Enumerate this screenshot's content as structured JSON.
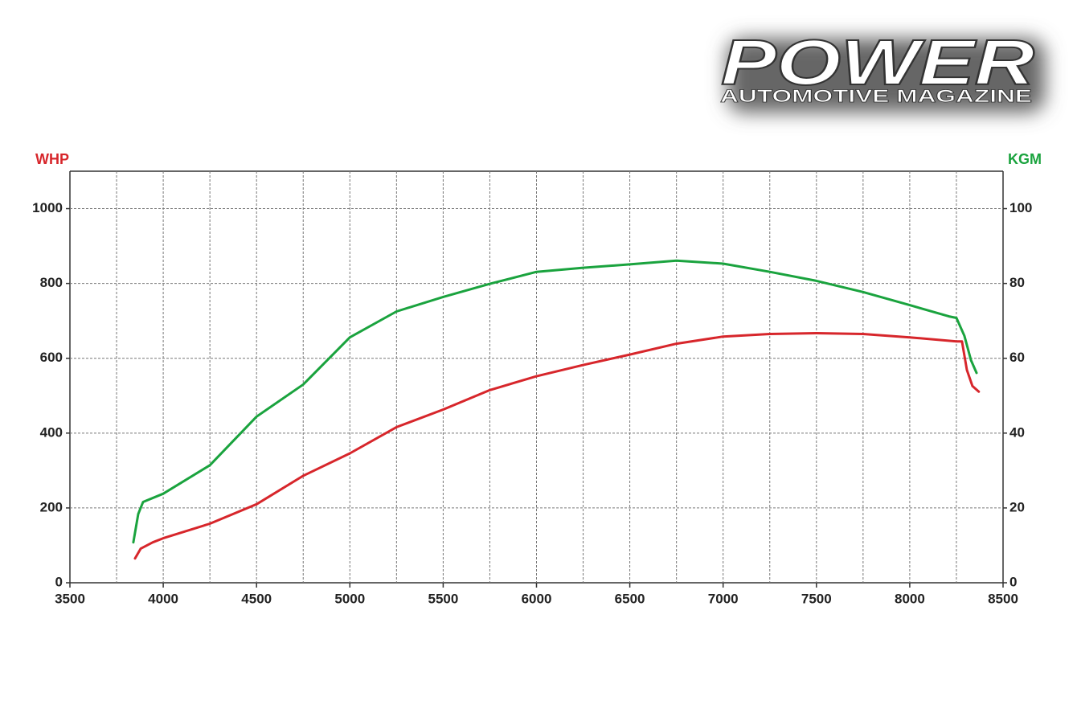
{
  "logo": {
    "title": "POWER",
    "subtitle": "AUTOMOTIVE MAGAZINE"
  },
  "chart_data": {
    "type": "line",
    "y_label": "WHP",
    "y2_label": "KGM",
    "xlim": [
      3500,
      8500
    ],
    "xticks": [
      3500,
      4000,
      4500,
      5000,
      5500,
      6000,
      6500,
      7000,
      7500,
      8000,
      8500
    ],
    "ylim": [
      0,
      1100
    ],
    "yticks": [
      0,
      200,
      400,
      600,
      800,
      1000
    ],
    "y2lim": [
      0,
      110
    ],
    "y2ticks": [
      0,
      20,
      40,
      60,
      80,
      100
    ],
    "grid": true,
    "series": [
      {
        "name": "WHP",
        "color": "#d7262b",
        "x": [
          3849,
          3879,
          3944,
          4000,
          4250,
          4500,
          4750,
          5000,
          5250,
          5500,
          5750,
          6000,
          6250,
          6500,
          6750,
          7000,
          7250,
          7500,
          7750,
          8000,
          8250,
          8280,
          8306,
          8336,
          8370
        ],
        "values": [
          65,
          91,
          108,
          119,
          158,
          210,
          286,
          346,
          416,
          463,
          515,
          552,
          582,
          610,
          639,
          658,
          665,
          667,
          665,
          656,
          645,
          645,
          569,
          526,
          511
        ]
      },
      {
        "name": "KGM",
        "color": "#1aa33e",
        "axis": "y2",
        "x": [
          3840,
          3866,
          3892,
          4000,
          4250,
          4500,
          4750,
          5000,
          5250,
          5500,
          5750,
          6000,
          6250,
          6500,
          6750,
          7000,
          7250,
          7500,
          7750,
          8000,
          8210,
          8250,
          8293,
          8328,
          8358
        ],
        "values": [
          10.8,
          18.4,
          21.6,
          23.8,
          31.4,
          44.4,
          53.0,
          65.6,
          72.5,
          76.4,
          79.9,
          83.1,
          84.2,
          85.1,
          86.1,
          85.3,
          83.1,
          80.7,
          77.7,
          74.2,
          71.2,
          70.8,
          66.0,
          59.5,
          56.1
        ]
      }
    ]
  }
}
